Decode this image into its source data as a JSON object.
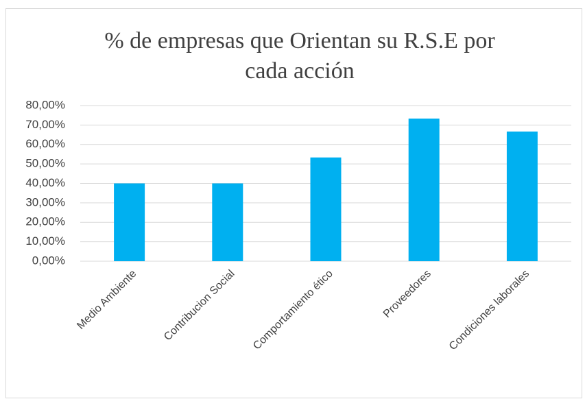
{
  "chart_data": {
    "type": "bar",
    "title": "% de empresas que Orientan su R.S.E por cada acción",
    "categories": [
      "Medio Ambiente",
      "Contribucion Social",
      "Comportamiento ético",
      "Proveedores",
      "Condiciones laborales"
    ],
    "values": [
      40,
      40,
      53.33,
      73.33,
      66.67
    ],
    "color": "#00b0f0",
    "ylim": [
      0,
      80
    ],
    "yticks": [
      {
        "value": 0,
        "label": "0,00%"
      },
      {
        "value": 10,
        "label": "10,00%"
      },
      {
        "value": 20,
        "label": "20,00%"
      },
      {
        "value": 30,
        "label": "30,00%"
      },
      {
        "value": 40,
        "label": "40,00%"
      },
      {
        "value": 50,
        "label": "50,00%"
      },
      {
        "value": 60,
        "label": "60,00%"
      },
      {
        "value": 70,
        "label": "70,00%"
      },
      {
        "value": 80,
        "label": "80,00%"
      }
    ],
    "grid": true
  }
}
